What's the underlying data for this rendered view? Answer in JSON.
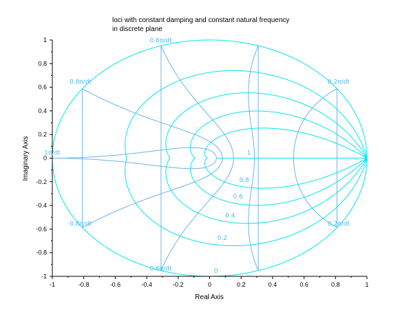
{
  "title": {
    "line1": "loci with constant damping and constant natural frequency",
    "line2": "in discrete plane"
  },
  "chart_data": {
    "type": "line",
    "title": "loci with constant damping and constant natural frequency in discrete plane",
    "xlabel": "Real Axis",
    "ylabel": "Imaginary Axis",
    "xlim": [
      -1,
      1
    ],
    "ylim": [
      -1,
      1
    ],
    "grid": false,
    "xticks": [
      "-1",
      "-0.8",
      "-0.6",
      "-0.4",
      "-0.2",
      "0",
      "0.2",
      "0.4",
      "0.6",
      "0.8",
      "1"
    ],
    "yticks": [
      "-1",
      "-0.8",
      "-0.6",
      "-0.4",
      "-0.2",
      "0",
      "0.2",
      "0.4",
      "0.6",
      "0.8",
      "1"
    ],
    "damping_values": [
      0,
      0.2,
      0.4,
      0.6,
      0.8,
      1
    ],
    "damping_labels": [
      {
        "text": "0",
        "x": 0.04,
        "y": -0.97
      },
      {
        "text": "0.2",
        "x": 0.08,
        "y": -0.69
      },
      {
        "text": "0.4",
        "x": 0.13,
        "y": -0.5
      },
      {
        "text": "0.6",
        "x": 0.18,
        "y": -0.34
      },
      {
        "text": "0.8",
        "x": 0.22,
        "y": -0.2
      },
      {
        "text": "1",
        "x": 0.25,
        "y": 0.03
      }
    ],
    "frequency_values": [
      0.2,
      0.4,
      0.6,
      0.8,
      1.0
    ],
    "frequency_labels": [
      {
        "text": "0.2π/dt",
        "x": 0.82,
        "y": 0.63
      },
      {
        "text": "0.2π/dt",
        "x": 0.82,
        "y": -0.57
      },
      {
        "text": "0.6π/dt",
        "x": -0.31,
        "y": -0.95
      },
      {
        "text": "0.6π/dt",
        "x": -0.31,
        "y": 0.98
      },
      {
        "text": "0.8π/dt",
        "x": -0.82,
        "y": 0.63
      },
      {
        "text": "0.8π/dt",
        "x": -0.82,
        "y": -0.57
      },
      {
        "text": "1π/dt",
        "x": -1.0,
        "y": 0.03
      }
    ],
    "colors": {
      "damping": "#00e5ee",
      "frequency": "#6ab4e8",
      "labels": "#4fb8e8",
      "axes": "#000000"
    }
  }
}
